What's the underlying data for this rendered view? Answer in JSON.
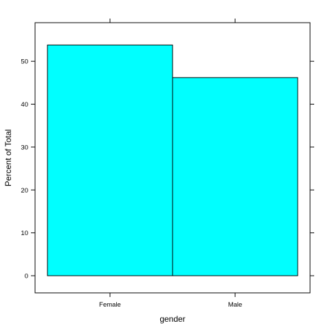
{
  "chart_data": {
    "type": "bar",
    "categories": [
      "Female",
      "Male"
    ],
    "values": [
      53.8,
      46.2
    ],
    "xlabel": "gender",
    "ylabel": "Percent of Total",
    "ylim": [
      -4,
      59
    ],
    "yticks": [
      0,
      10,
      20,
      30,
      40,
      50
    ],
    "grid": false,
    "bar_color": "#00ffff",
    "bar_border_color": "#000000"
  }
}
